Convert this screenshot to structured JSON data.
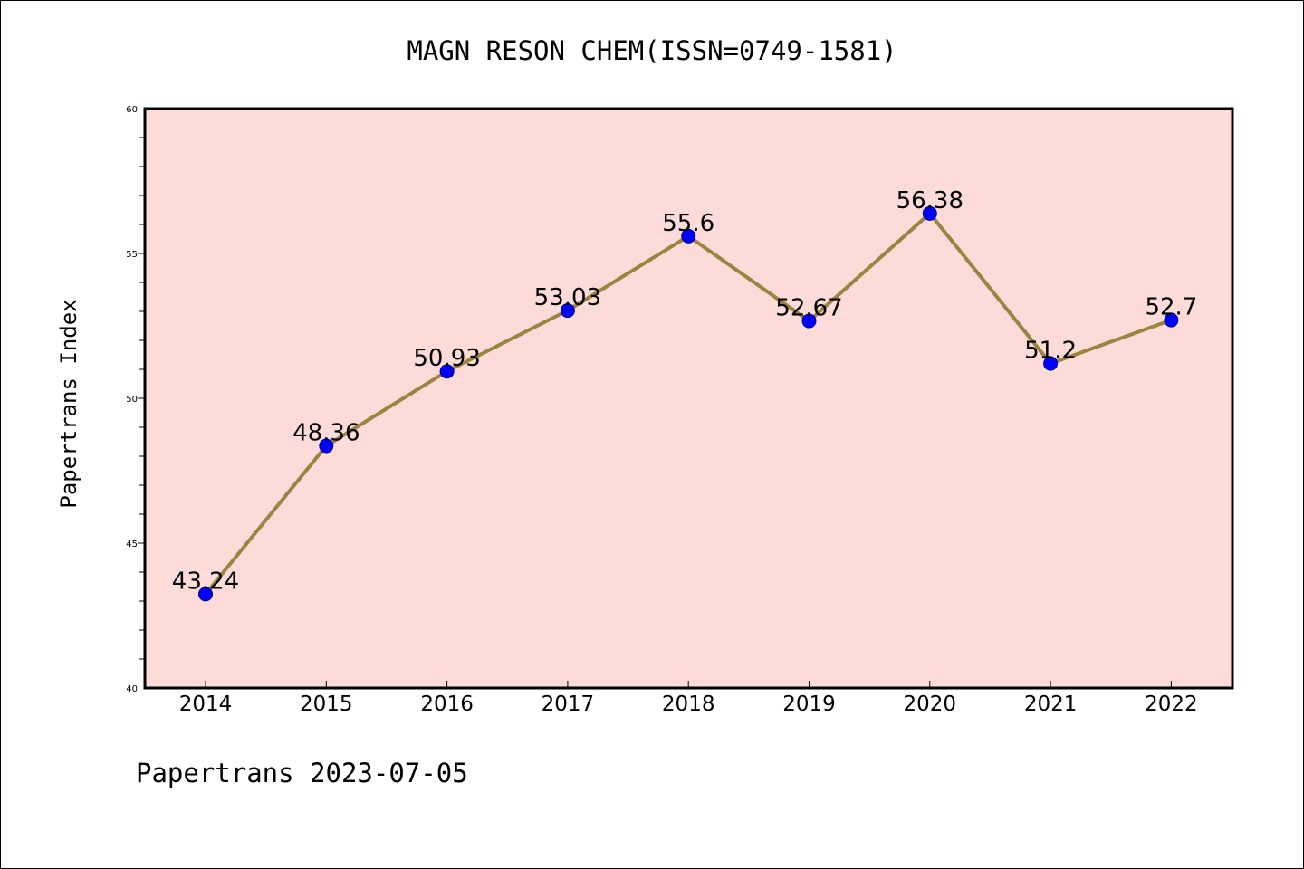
{
  "chart_data": {
    "type": "line",
    "title": "MAGN RESON CHEM(ISSN=0749-1581)",
    "ylabel": "Papertrans Index",
    "xlabel": "",
    "categories": [
      "2014",
      "2015",
      "2016",
      "2017",
      "2018",
      "2019",
      "2020",
      "2021",
      "2022"
    ],
    "values": [
      43.24,
      48.36,
      50.93,
      53.03,
      55.6,
      52.67,
      56.38,
      51.2,
      52.7
    ],
    "data_labels": [
      "43.24",
      "48.36",
      "50.93",
      "53.03",
      "55.6",
      "52.67",
      "56.38",
      "51.2",
      "52.7"
    ],
    "ylim": [
      40,
      60
    ],
    "yticks": [
      40,
      45,
      50,
      55,
      60
    ],
    "grid": false,
    "colors": {
      "plot_background": "#fddbd8",
      "line": "#9a8440",
      "marker_fill": "#0000ff",
      "marker_edge": "#000080"
    }
  },
  "footer": {
    "text": "Papertrans 2023-07-05"
  }
}
